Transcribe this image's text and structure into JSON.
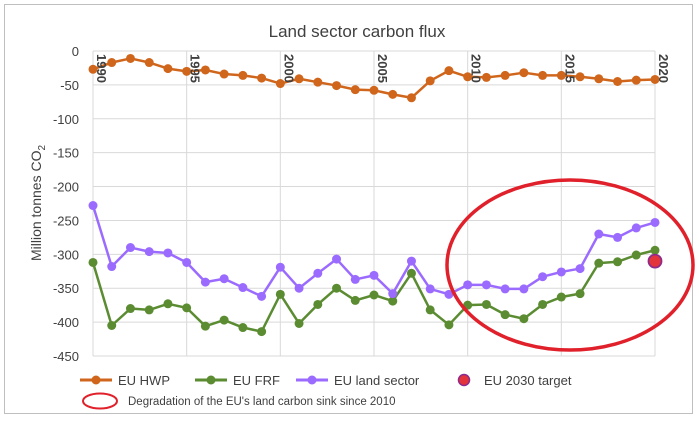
{
  "chart_data": {
    "type": "line",
    "title": "Land sector carbon flux",
    "ylabel": "Million tonnes CO",
    "ylabel_sub": "2",
    "ylim": [
      -450,
      0
    ],
    "yticks": [
      0,
      -50,
      -100,
      -150,
      -200,
      -250,
      -300,
      -350,
      -400,
      -450
    ],
    "x": [
      1990,
      1991,
      1992,
      1993,
      1994,
      1995,
      1996,
      1997,
      1998,
      1999,
      2000,
      2001,
      2002,
      2003,
      2004,
      2005,
      2006,
      2007,
      2008,
      2009,
      2010,
      2011,
      2012,
      2013,
      2014,
      2015,
      2016,
      2017,
      2018,
      2019,
      2020
    ],
    "xticks": [
      1990,
      1995,
      2000,
      2005,
      2010,
      2015,
      2020
    ],
    "series": [
      {
        "name": "EU HWP",
        "color": "#d0661c",
        "values": [
          -27,
          -17,
          -11,
          -17,
          -26,
          -30,
          -28,
          -34,
          -36,
          -40,
          -48,
          -41,
          -46,
          -51,
          -57,
          -58,
          -64,
          -69,
          -44,
          -29,
          -38,
          -39,
          -36,
          -32,
          -36,
          -36,
          -38,
          -41,
          -45,
          -43,
          -42
        ]
      },
      {
        "name": "EU FRF",
        "color": "#5b8c32",
        "values": [
          -312,
          -405,
          -380,
          -382,
          -373,
          -379,
          -406,
          -397,
          -408,
          -414,
          -359,
          -402,
          -374,
          -350,
          -368,
          -360,
          -369,
          -328,
          -382,
          -404,
          -375,
          -374,
          -389,
          -395,
          -374,
          -363,
          -358,
          -313,
          -311,
          -301,
          -294
        ]
      },
      {
        "name": "EU land sector",
        "color": "#9b6bff",
        "values": [
          -228,
          -318,
          -290,
          -296,
          -298,
          -312,
          -341,
          -336,
          -349,
          -362,
          -319,
          -350,
          -328,
          -307,
          -337,
          -331,
          -358,
          -310,
          -351,
          -359,
          -345,
          -345,
          -351,
          -351,
          -333,
          -326,
          -321,
          -270,
          -275,
          -261,
          -253
        ]
      }
    ],
    "target": {
      "name": "EU 2030 target",
      "x": 2020,
      "y": -310,
      "color": "#e2343a",
      "edge": "#8e2a8a"
    },
    "annotation": {
      "label": "Degradation of the EU's land carbon sink since 2010",
      "color": "#e0202a"
    }
  }
}
